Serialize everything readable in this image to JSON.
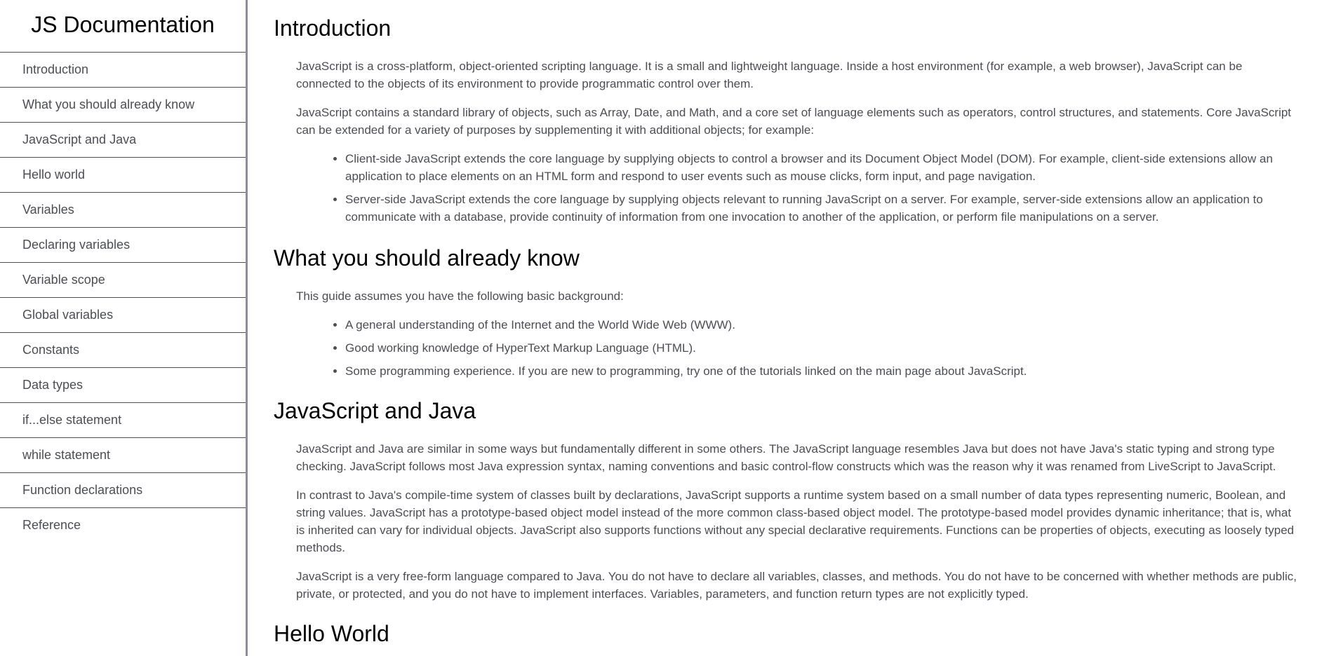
{
  "navbar": {
    "title": "JS Documentation",
    "items": [
      {
        "label": "Introduction"
      },
      {
        "label": "What you should already know"
      },
      {
        "label": "JavaScript and Java"
      },
      {
        "label": "Hello world"
      },
      {
        "label": "Variables"
      },
      {
        "label": "Declaring variables"
      },
      {
        "label": "Variable scope"
      },
      {
        "label": "Global variables"
      },
      {
        "label": "Constants"
      },
      {
        "label": "Data types"
      },
      {
        "label": "if...else statement"
      },
      {
        "label": "while statement"
      },
      {
        "label": "Function declarations"
      },
      {
        "label": "Reference"
      }
    ]
  },
  "sections": {
    "intro": {
      "title": "Introduction",
      "p1": "JavaScript is a cross-platform, object-oriented scripting language. It is a small and lightweight language. Inside a host environment (for example, a web browser), JavaScript can be connected to the objects of its environment to provide programmatic control over them.",
      "p2": "JavaScript contains a standard library of objects, such as Array, Date, and Math, and a core set of language elements such as operators, control structures, and statements. Core JavaScript can be extended for a variety of purposes by supplementing it with additional objects; for example:",
      "list": [
        "Client-side JavaScript extends the core language by supplying objects to control a browser and its Document Object Model (DOM). For example, client-side extensions allow an application to place elements on an HTML form and respond to user events such as mouse clicks, form input, and page navigation.",
        "Server-side JavaScript extends the core language by supplying objects relevant to running JavaScript on a server. For example, server-side extensions allow an application to communicate with a database, provide continuity of information from one invocation to another of the application, or perform file manipulations on a server."
      ]
    },
    "know": {
      "title": "What you should already know",
      "p1": "This guide assumes you have the following basic background:",
      "list": [
        "A general understanding of the Internet and the World Wide Web (WWW).",
        "Good working knowledge of HyperText Markup Language (HTML).",
        "Some programming experience. If you are new to programming, try one of the tutorials linked on the main page about JavaScript."
      ]
    },
    "java": {
      "title": "JavaScript and Java",
      "p1": "JavaScript and Java are similar in some ways but fundamentally different in some others. The JavaScript language resembles Java but does not have Java's static typing and strong type checking. JavaScript follows most Java expression syntax, naming conventions and basic control-flow constructs which was the reason why it was renamed from LiveScript to JavaScript.",
      "p2": "In contrast to Java's compile-time system of classes built by declarations, JavaScript supports a runtime system based on a small number of data types representing numeric, Boolean, and string values. JavaScript has a prototype-based object model instead of the more common class-based object model. The prototype-based model provides dynamic inheritance; that is, what is inherited can vary for individual objects. JavaScript also supports functions without any special declarative requirements. Functions can be properties of objects, executing as loosely typed methods.",
      "p3": "JavaScript is a very free-form language compared to Java. You do not have to declare all variables, classes, and methods. You do not have to be concerned with whether methods are public, private, or protected, and you do not have to implement interfaces. Variables, parameters, and function return types are not explicitly typed."
    },
    "hello": {
      "title": "Hello World"
    }
  }
}
